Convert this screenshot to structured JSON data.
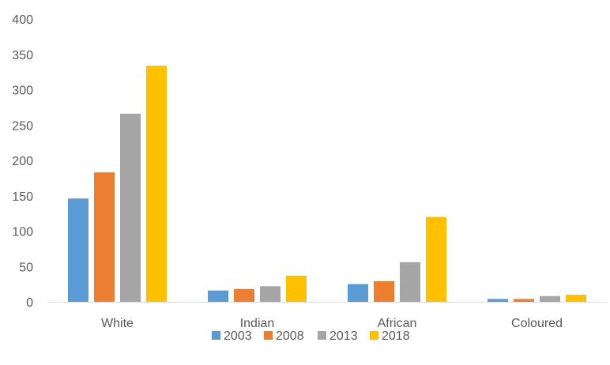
{
  "chart_data": {
    "type": "bar",
    "categories": [
      "White",
      "Indian",
      "African",
      "Coloured"
    ],
    "series": [
      {
        "name": "2003",
        "color": "#5B9BD5",
        "values": [
          146,
          16,
          25,
          4
        ]
      },
      {
        "name": "2008",
        "color": "#ED7D31",
        "values": [
          183,
          18,
          29,
          4
        ]
      },
      {
        "name": "2013",
        "color": "#A5A5A5",
        "values": [
          266,
          22,
          56,
          8
        ]
      },
      {
        "name": "2018",
        "color": "#FFC000",
        "values": [
          334,
          37,
          120,
          10
        ]
      }
    ],
    "yticks": [
      "0",
      "50",
      "100",
      "150",
      "200",
      "250",
      "300",
      "350",
      "400"
    ],
    "ylim": [
      0,
      400
    ],
    "grid": false,
    "legend_position": "bottom",
    "title": "",
    "xlabel": "",
    "ylabel": ""
  }
}
